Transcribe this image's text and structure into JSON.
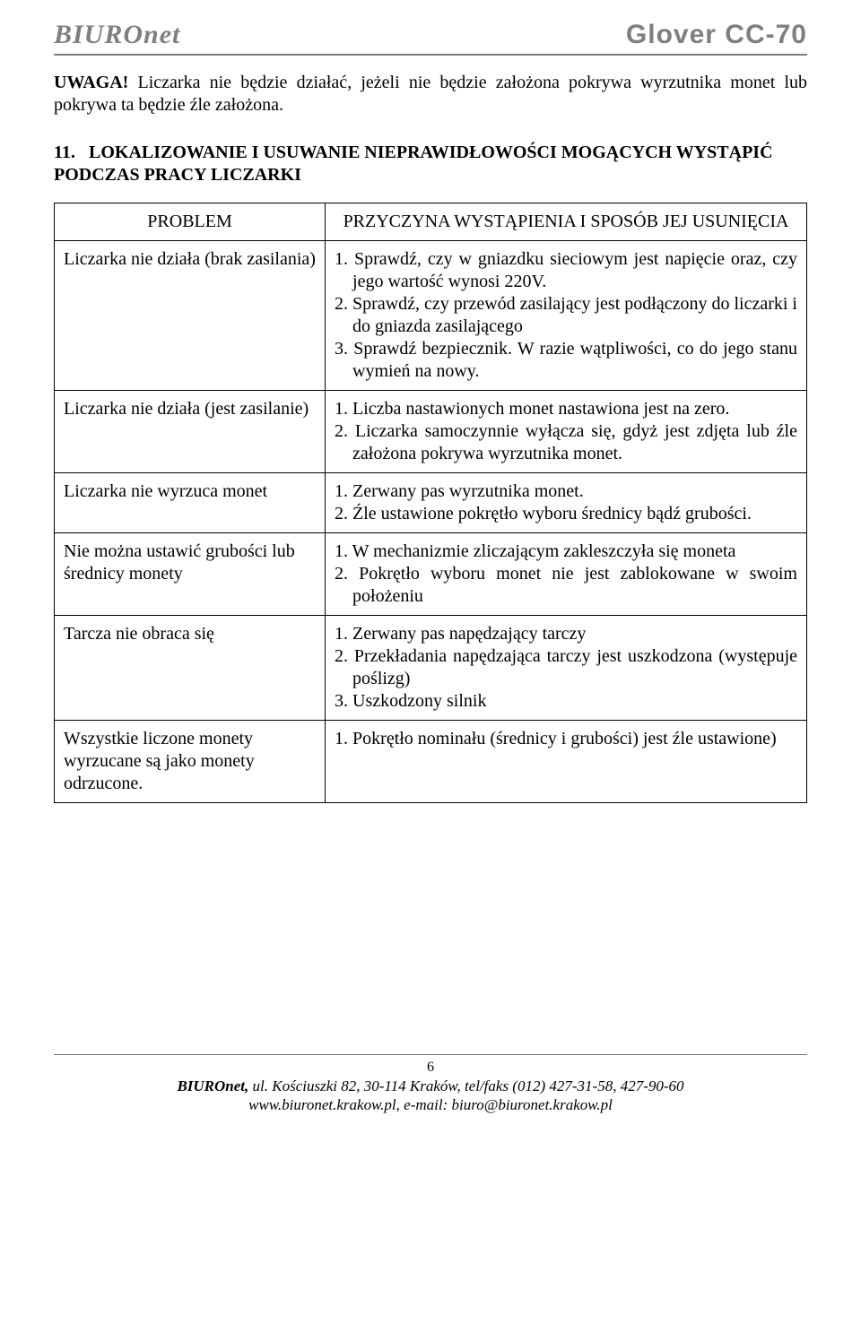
{
  "header": {
    "brand_left": "BIUROnet",
    "brand_right": "Glover CC-70"
  },
  "warning": {
    "label": "UWAGA!",
    "text": " Liczarka nie będzie działać, jeżeli nie będzie założona pokrywa wyrzutnika monet lub pokrywa ta będzie źle założona."
  },
  "section": {
    "number": "11.",
    "title": "LOKALIZOWANIE I USUWANIE NIEPRAWIDŁOWOŚCI MOGĄCYCH WYSTĄPIĆ PODCZAS PRACY LICZARKI"
  },
  "table": {
    "head_problem": "PROBLEM",
    "head_cause": "PRZYCZYNA WYSTĄPIENIA I SPOSÓB JEJ USUNIĘCIA",
    "rows": [
      {
        "problem": "Liczarka nie działa (brak zasilania)",
        "causes": [
          "1. Sprawdź, czy w gniazdku sieciowym jest napięcie oraz, czy jego wartość wynosi 220V.",
          "2. Sprawdź, czy przewód zasilający jest podłączony do liczarki i do gniazda zasilającego",
          "3. Sprawdź bezpiecznik. W razie wątpliwości, co do jego stanu wymień na nowy."
        ]
      },
      {
        "problem": "Liczarka nie działa\n (jest zasilanie)",
        "causes": [
          "1. Liczba nastawionych monet nastawiona jest na zero.",
          "2. Liczarka samoczynnie wyłącza się, gdyż jest zdjęta lub źle założona pokrywa wyrzutnika monet."
        ]
      },
      {
        "problem": "Liczarka nie wyrzuca monet",
        "causes": [
          "1. Zerwany pas wyrzutnika monet.",
          "2. Źle ustawione pokrętło wyboru średnicy bądź grubości."
        ]
      },
      {
        "problem": "Nie można ustawić grubości lub średnicy monety",
        "causes": [
          "1. W mechanizmie zliczającym zakleszczyła się moneta",
          "2. Pokrętło wyboru monet nie jest zablokowane w swoim położeniu"
        ]
      },
      {
        "problem": "Tarcza nie obraca się",
        "causes": [
          "1. Zerwany pas napędzający tarczy",
          "2. Przekładania napędzająca tarczy jest uszkodzona (występuje poślizg)",
          "3. Uszkodzony silnik"
        ]
      },
      {
        "problem": "Wszystkie liczone monety wyrzucane są jako monety odrzucone.",
        "causes": [
          "1. Pokrętło nominału (średnicy i grubości) jest źle ustawione)"
        ]
      }
    ]
  },
  "footer": {
    "page_number": "6",
    "line1_bold": "BIUROnet,",
    "line1_rest": " ul. Kościuszki 82, 30-114 Kraków, tel/faks (012) 427-31-58, 427-90-60",
    "line2": "www.biuronet.krakow.pl, e-mail: biuro@biuronet.krakow.pl"
  }
}
